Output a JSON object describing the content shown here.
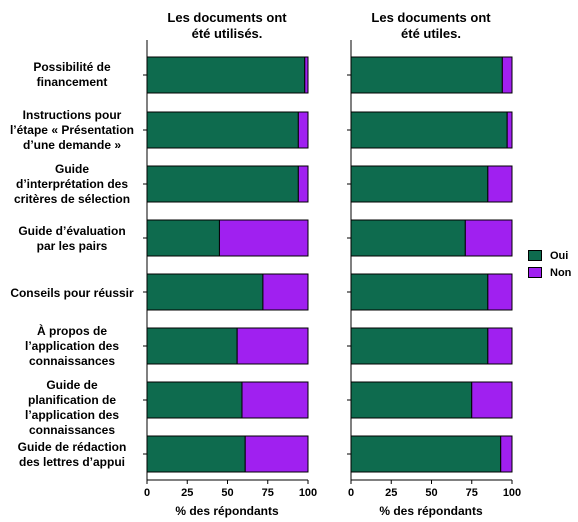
{
  "panels": [
    {
      "title": "Les documents ont\nété utilisés.",
      "xlabel": "% des répondants"
    },
    {
      "title": "Les documents ont\nété utiles.",
      "xlabel": "% des répondants"
    }
  ],
  "categories": [
    "Possibilité de\nfinancement",
    "Instructions pour\nl’étape « Présentation\nd’une demande »",
    "Guide\nd’interprétation des\ncritères de sélection",
    "Guide d’évaluation\npar les pairs",
    "Conseils pour réussir",
    "À propos de\nl’application des\nconnaissances",
    "Guide de\nplanification de\nl’application des\nconnaissances",
    "Guide de rédaction\ndes lettres d’appui"
  ],
  "legend": [
    {
      "label": "Oui",
      "color": "#0e6b4e"
    },
    {
      "label": "Non",
      "color": "#a020f0"
    }
  ],
  "chart_data": [
    {
      "type": "bar",
      "orientation": "horizontal",
      "stacked": true,
      "title": "Les documents ont été utilisés.",
      "xlabel": "% des répondants",
      "xlim": [
        0,
        100
      ],
      "xticks": [
        "0",
        "25",
        "50",
        "75",
        "100"
      ],
      "categories": [
        "Possibilité de financement",
        "Instructions pour l’étape « Présentation d’une demande »",
        "Guide d’interprétation des critères de sélection",
        "Guide d’évaluation par les pairs",
        "Conseils pour réussir",
        "À propos de l’application des connaissances",
        "Guide de planification de l’application des connaissances",
        "Guide de rédaction des lettres d’appui"
      ],
      "series": [
        {
          "name": "Oui",
          "values": [
            98,
            94,
            94,
            45,
            72,
            56,
            59,
            61
          ]
        },
        {
          "name": "Non",
          "values": [
            2,
            6,
            6,
            55,
            28,
            44,
            41,
            39
          ]
        }
      ]
    },
    {
      "type": "bar",
      "orientation": "horizontal",
      "stacked": true,
      "title": "Les documents ont été utiles.",
      "xlabel": "% des répondants",
      "xlim": [
        0,
        100
      ],
      "xticks": [
        "0",
        "25",
        "50",
        "75",
        "100"
      ],
      "categories": [
        "Possibilité de financement",
        "Instructions pour l’étape « Présentation d’une demande »",
        "Guide d’interprétation des critères de sélection",
        "Guide d’évaluation par les pairs",
        "Conseils pour réussir",
        "À propos de l’application des connaissances",
        "Guide de planification de l’application des connaissances",
        "Guide de rédaction des lettres d’appui"
      ],
      "series": [
        {
          "name": "Oui",
          "values": [
            94,
            97,
            85,
            71,
            85,
            85,
            75,
            93
          ]
        },
        {
          "name": "Non",
          "values": [
            6,
            3,
            15,
            29,
            15,
            15,
            25,
            7
          ]
        }
      ]
    }
  ]
}
